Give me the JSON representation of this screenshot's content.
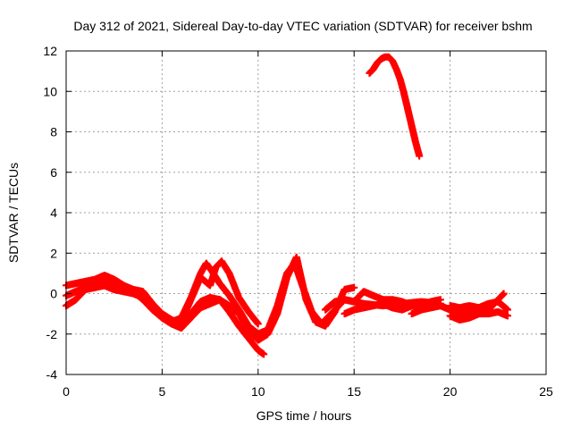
{
  "chart_data": {
    "type": "scatter",
    "title": "Day 312 of 2021, Sidereal Day-to-day VTEC variation (SDTVAR) for receiver bshm",
    "xlabel": "GPS time / hours",
    "ylabel": "SDTVAR / TECUs",
    "xlim": [
      0,
      25
    ],
    "ylim": [
      -4,
      12
    ],
    "xticks": [
      0,
      5,
      10,
      15,
      20,
      25
    ],
    "yticks": [
      -4,
      -2,
      0,
      2,
      4,
      6,
      8,
      10,
      12
    ],
    "grid": true,
    "marker": "+",
    "color": "#ff0000",
    "series": [
      {
        "name": "track-a",
        "points": [
          [
            0.0,
            0.4
          ],
          [
            0.5,
            0.5
          ],
          [
            1.0,
            0.6
          ],
          [
            1.5,
            0.7
          ],
          [
            2.0,
            0.9
          ],
          [
            2.5,
            0.7
          ],
          [
            3.0,
            0.4
          ],
          [
            3.5,
            0.2
          ],
          [
            4.0,
            0.1
          ],
          [
            4.5,
            -0.5
          ],
          [
            5.0,
            -1.0
          ],
          [
            5.5,
            -1.3
          ],
          [
            6.0,
            -1.5
          ],
          [
            6.5,
            -1.0
          ],
          [
            7.0,
            -0.4
          ],
          [
            7.5,
            -0.2
          ],
          [
            8.0,
            -0.3
          ],
          [
            8.5,
            -0.6
          ],
          [
            9.0,
            -1.0
          ],
          [
            9.5,
            -1.8
          ],
          [
            10.0,
            -2.3
          ],
          [
            10.5,
            -2.0
          ],
          [
            11.0,
            -1.0
          ],
          [
            11.5,
            0.8
          ],
          [
            12.0,
            1.8
          ],
          [
            12.5,
            -0.3
          ],
          [
            13.0,
            -1.4
          ],
          [
            13.5,
            -1.6
          ],
          [
            14.0,
            -0.9
          ],
          [
            14.5,
            0.2
          ],
          [
            15.0,
            0.3
          ]
        ]
      },
      {
        "name": "track-b",
        "points": [
          [
            0.0,
            -0.1
          ],
          [
            0.5,
            0.1
          ],
          [
            1.0,
            0.3
          ],
          [
            1.5,
            0.5
          ],
          [
            2.0,
            0.7
          ],
          [
            2.5,
            0.5
          ],
          [
            3.0,
            0.3
          ],
          [
            3.5,
            0.1
          ],
          [
            4.0,
            -0.3
          ],
          [
            4.5,
            -0.8
          ],
          [
            5.0,
            -1.2
          ],
          [
            5.5,
            -1.5
          ],
          [
            6.0,
            -1.7
          ],
          [
            6.5,
            -1.2
          ],
          [
            7.0,
            -0.7
          ],
          [
            7.5,
            -0.5
          ],
          [
            8.0,
            -0.3
          ],
          [
            8.5,
            -0.9
          ],
          [
            9.0,
            -1.6
          ],
          [
            9.5,
            -2.2
          ],
          [
            10.0,
            -2.8
          ],
          [
            10.3,
            -3.0
          ]
        ]
      },
      {
        "name": "track-c",
        "points": [
          [
            0.0,
            -0.6
          ],
          [
            0.5,
            -0.3
          ],
          [
            1.0,
            0.2
          ],
          [
            1.5,
            0.3
          ],
          [
            2.0,
            0.4
          ],
          [
            2.5,
            0.2
          ],
          [
            3.0,
            0.1
          ],
          [
            3.5,
            0.0
          ],
          [
            4.0,
            -0.2
          ],
          [
            4.5,
            -0.6
          ],
          [
            5.0,
            -1.0
          ],
          [
            5.5,
            -1.4
          ],
          [
            6.0,
            -1.2
          ],
          [
            6.5,
            -0.2
          ],
          [
            7.0,
            1.0
          ],
          [
            7.3,
            1.5
          ],
          [
            7.6,
            1.1
          ],
          [
            8.0,
            0.5
          ],
          [
            8.5,
            -0.1
          ],
          [
            9.0,
            -0.8
          ],
          [
            9.5,
            -1.6
          ],
          [
            10.0,
            -2.0
          ],
          [
            10.5,
            -1.8
          ],
          [
            11.0,
            -0.6
          ],
          [
            11.5,
            1.0
          ],
          [
            11.9,
            1.5
          ],
          [
            12.3,
            0.4
          ],
          [
            12.8,
            -0.9
          ],
          [
            13.3,
            -1.5
          ],
          [
            13.8,
            -1.0
          ],
          [
            14.5,
            -0.3
          ],
          [
            15.5,
            -0.5
          ],
          [
            16.5,
            -0.6
          ],
          [
            17.5,
            -0.5
          ],
          [
            18.5,
            -0.4
          ],
          [
            19.5,
            -0.5
          ]
        ]
      },
      {
        "name": "track-d",
        "points": [
          [
            6.0,
            -1.4
          ],
          [
            6.5,
            -0.3
          ],
          [
            7.0,
            0.8
          ],
          [
            7.5,
            0.4
          ],
          [
            7.8,
            1.3
          ],
          [
            8.1,
            1.6
          ],
          [
            8.5,
            1.0
          ],
          [
            9.0,
            -0.2
          ],
          [
            9.5,
            -0.9
          ],
          [
            10.0,
            -1.5
          ]
        ]
      },
      {
        "name": "track-e",
        "points": [
          [
            13.5,
            -0.8
          ],
          [
            14.0,
            -0.4
          ],
          [
            14.5,
            -0.3
          ],
          [
            15.0,
            -0.4
          ],
          [
            15.5,
            0.1
          ],
          [
            16.0,
            -0.1
          ],
          [
            16.5,
            -0.3
          ],
          [
            17.0,
            -0.3
          ],
          [
            17.5,
            -0.4
          ],
          [
            18.0,
            -0.6
          ],
          [
            18.5,
            -0.6
          ],
          [
            19.0,
            -0.4
          ],
          [
            19.5,
            -0.3
          ]
        ]
      },
      {
        "name": "track-f",
        "points": [
          [
            14.5,
            -1.0
          ],
          [
            15.0,
            -0.8
          ],
          [
            15.5,
            -0.7
          ],
          [
            16.0,
            -0.6
          ],
          [
            16.5,
            -0.5
          ],
          [
            17.0,
            -0.7
          ],
          [
            17.5,
            -0.8
          ],
          [
            18.0,
            -0.6
          ]
        ]
      },
      {
        "name": "track-g",
        "points": [
          [
            18.0,
            -1.0
          ],
          [
            18.5,
            -0.8
          ],
          [
            19.0,
            -0.7
          ],
          [
            19.5,
            -0.6
          ],
          [
            20.0,
            -0.8
          ],
          [
            20.5,
            -1.0
          ],
          [
            21.0,
            -0.9
          ],
          [
            21.5,
            -0.7
          ],
          [
            22.0,
            -0.5
          ],
          [
            22.5,
            -0.4
          ],
          [
            23.0,
            -0.8
          ]
        ]
      },
      {
        "name": "track-h",
        "points": [
          [
            20.0,
            -1.1
          ],
          [
            20.5,
            -1.3
          ],
          [
            21.0,
            -1.2
          ],
          [
            21.5,
            -1.0
          ],
          [
            22.0,
            -1.0
          ],
          [
            22.5,
            -0.9
          ],
          [
            23.0,
            -1.1
          ]
        ]
      },
      {
        "name": "track-i",
        "points": [
          [
            20.0,
            -0.6
          ],
          [
            20.5,
            -0.7
          ],
          [
            21.0,
            -0.6
          ],
          [
            21.5,
            -0.7
          ],
          [
            22.0,
            -0.8
          ],
          [
            22.5,
            -0.3
          ],
          [
            22.8,
            0.0
          ]
        ]
      },
      {
        "name": "high-arc",
        "points": [
          [
            15.8,
            10.9
          ],
          [
            16.0,
            11.1
          ],
          [
            16.2,
            11.4
          ],
          [
            16.4,
            11.6
          ],
          [
            16.6,
            11.7
          ],
          [
            16.8,
            11.7
          ],
          [
            17.0,
            11.5
          ],
          [
            17.2,
            11.1
          ],
          [
            17.4,
            10.6
          ],
          [
            17.6,
            9.9
          ],
          [
            17.8,
            9.1
          ],
          [
            18.0,
            8.3
          ],
          [
            18.2,
            7.5
          ],
          [
            18.4,
            6.8
          ]
        ]
      }
    ]
  }
}
